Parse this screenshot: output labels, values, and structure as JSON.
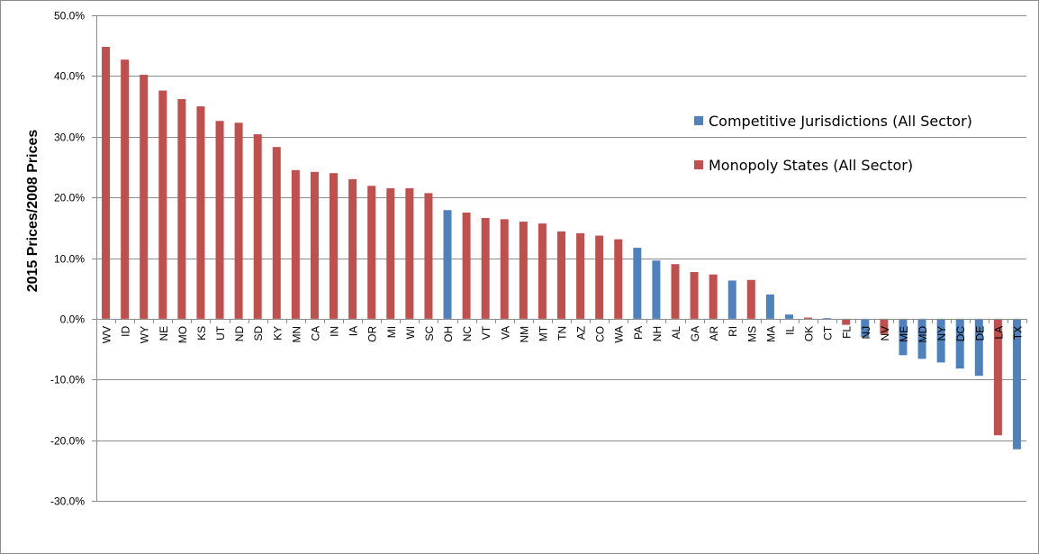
{
  "chart_data": {
    "type": "bar",
    "title": "",
    "xlabel": "",
    "ylabel": "2015 Prices/2008 Prices",
    "ylim": [
      -0.3,
      0.5
    ],
    "yticks": [
      0.5,
      0.4,
      0.3,
      0.2,
      0.1,
      0.0,
      -0.1,
      -0.2,
      -0.3
    ],
    "ytick_labels": [
      "50.0%",
      "40.0%",
      "30.0%",
      "20.0%",
      "10.0%",
      "0.0%",
      "-10.0%",
      "-20.0%",
      "-30.0%"
    ],
    "grid": "horizontal",
    "legend_position": "right",
    "categories": [
      "WV",
      "ID",
      "WY",
      "NE",
      "MO",
      "KS",
      "UT",
      "ND",
      "SD",
      "KY",
      "MN",
      "CA",
      "IN",
      "IA",
      "OR",
      "MI",
      "WI",
      "SC",
      "OH",
      "NC",
      "VT",
      "VA",
      "NM",
      "MT",
      "TN",
      "AZ",
      "CO",
      "WA",
      "PA",
      "NH",
      "AL",
      "GA",
      "AR",
      "RI",
      "MS",
      "MA",
      "IL",
      "OK",
      "CT",
      "FL",
      "NJ",
      "NV",
      "ME",
      "MD",
      "NY",
      "DC",
      "DE",
      "LA",
      "TX"
    ],
    "values": [
      0.448,
      0.427,
      0.402,
      0.376,
      0.362,
      0.35,
      0.326,
      0.323,
      0.304,
      0.283,
      0.245,
      0.242,
      0.24,
      0.23,
      0.219,
      0.215,
      0.215,
      0.207,
      0.179,
      0.175,
      0.166,
      0.164,
      0.16,
      0.157,
      0.144,
      0.141,
      0.137,
      0.131,
      0.117,
      0.096,
      0.09,
      0.077,
      0.073,
      0.063,
      0.064,
      0.04,
      0.007,
      0.002,
      0.001,
      -0.01,
      -0.03,
      -0.025,
      -0.06,
      -0.066,
      -0.072,
      -0.082,
      -0.094,
      -0.192,
      -0.215
    ],
    "groups": [
      "Monopoly States (All Sector)",
      "Monopoly States (All Sector)",
      "Monopoly States (All Sector)",
      "Monopoly States (All Sector)",
      "Monopoly States (All Sector)",
      "Monopoly States (All Sector)",
      "Monopoly States (All Sector)",
      "Monopoly States (All Sector)",
      "Monopoly States (All Sector)",
      "Monopoly States (All Sector)",
      "Monopoly States (All Sector)",
      "Monopoly States (All Sector)",
      "Monopoly States (All Sector)",
      "Monopoly States (All Sector)",
      "Monopoly States (All Sector)",
      "Monopoly States (All Sector)",
      "Monopoly States (All Sector)",
      "Monopoly States (All Sector)",
      "Competitive Jurisdictions (All Sector)",
      "Monopoly States (All Sector)",
      "Monopoly States (All Sector)",
      "Monopoly States (All Sector)",
      "Monopoly States (All Sector)",
      "Monopoly States (All Sector)",
      "Monopoly States (All Sector)",
      "Monopoly States (All Sector)",
      "Monopoly States (All Sector)",
      "Monopoly States (All Sector)",
      "Competitive Jurisdictions (All Sector)",
      "Competitive Jurisdictions (All Sector)",
      "Monopoly States (All Sector)",
      "Monopoly States (All Sector)",
      "Monopoly States (All Sector)",
      "Competitive Jurisdictions (All Sector)",
      "Monopoly States (All Sector)",
      "Competitive Jurisdictions (All Sector)",
      "Competitive Jurisdictions (All Sector)",
      "Monopoly States (All Sector)",
      "Competitive Jurisdictions (All Sector)",
      "Monopoly States (All Sector)",
      "Competitive Jurisdictions (All Sector)",
      "Monopoly States (All Sector)",
      "Competitive Jurisdictions (All Sector)",
      "Competitive Jurisdictions (All Sector)",
      "Competitive Jurisdictions (All Sector)",
      "Competitive Jurisdictions (All Sector)",
      "Competitive Jurisdictions (All Sector)",
      "Monopoly States (All Sector)",
      "Competitive Jurisdictions (All Sector)"
    ],
    "legend": [
      {
        "name": "Competitive Jurisdictions (All Sector)",
        "color": "#4f81bd"
      },
      {
        "name": "Monopoly States (All Sector)",
        "color": "#c0504d"
      }
    ]
  }
}
